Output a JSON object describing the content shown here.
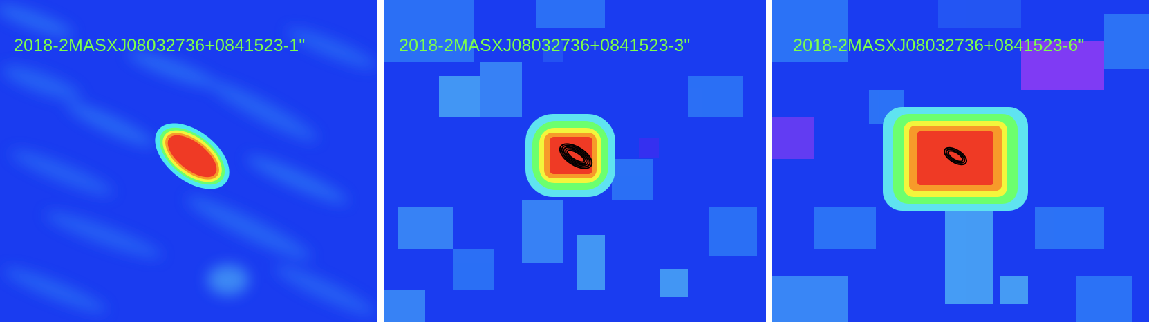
{
  "panels": [
    {
      "label": "2018-2MASXJ08032736+0841523-1\""
    },
    {
      "label": "2018-2MASXJ08032736+0841523-3\""
    },
    {
      "label": "2018-2MASXJ08032736+0841523-6\""
    }
  ],
  "colors": {
    "background": "#1a3cf0",
    "label_text": "#7dff4a",
    "source_core": "#ef3a25",
    "source_ring_orange": "#f79a2a",
    "source_ring_yellow": "#f3f53c",
    "source_ring_green": "#6cff6e",
    "source_ring_cyan": "#5fe3f0",
    "contour": "#000000",
    "purple_region": "#8a3bf5"
  }
}
